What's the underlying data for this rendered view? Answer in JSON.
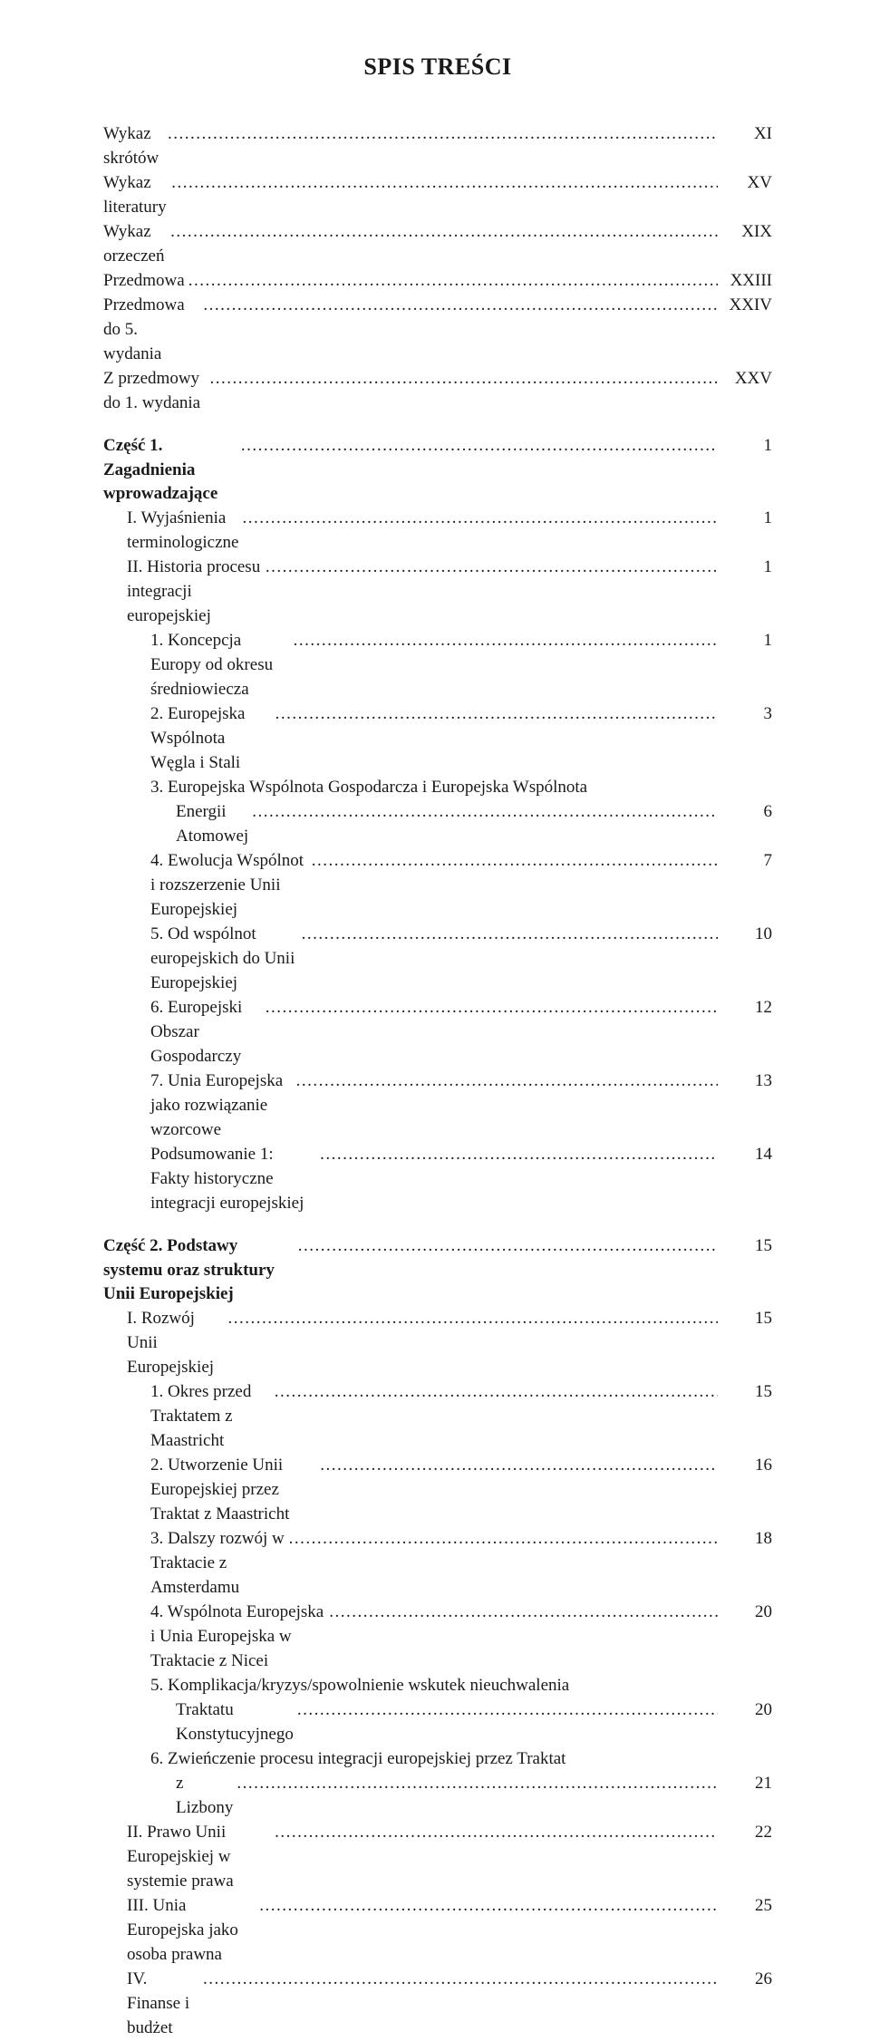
{
  "doc": {
    "title": "SPIS TREŚCI",
    "font_family": "Times New Roman",
    "text_color": "#1a1a1a",
    "background_color": "#ffffff",
    "title_fontsize": 26,
    "body_fontsize": 19
  },
  "lines": [
    {
      "indent": "indent-0",
      "label": "Wykaz skrótów",
      "page": "XI"
    },
    {
      "indent": "indent-0",
      "label": "Wykaz literatury",
      "page": "XV"
    },
    {
      "indent": "indent-0",
      "label": "Wykaz orzeczeń",
      "page": "XIX"
    },
    {
      "indent": "indent-0",
      "label": "Przedmowa",
      "page": "XXIII"
    },
    {
      "indent": "indent-0",
      "label": "Przedmowa do 5. wydania",
      "page": "XXIV"
    },
    {
      "indent": "indent-0",
      "label": "Z przedmowy do 1. wydania",
      "page": "XXV"
    },
    {
      "gap": true
    },
    {
      "indent": "indent-0",
      "bold": true,
      "label": "Część 1. Zagadnienia wprowadzające",
      "page": "1"
    },
    {
      "indent": "indent-1",
      "label": "I. Wyjaśnienia terminologiczne",
      "page": "1"
    },
    {
      "indent": "indent-1",
      "label": "II. Historia procesu integracji europejskiej",
      "page": "1"
    },
    {
      "indent": "indent-2",
      "label": "1. Koncepcja Europy od okresu średniowiecza",
      "page": "1"
    },
    {
      "indent": "indent-2",
      "label": "2. Europejska Wspólnota Węgla i Stali",
      "page": "3"
    },
    {
      "indent": "indent-2",
      "label": "3. Europejska Wspólnota Gospodarcza i Europejska Wspólnota",
      "cont": true
    },
    {
      "indent": "cont-2",
      "label": "Energii Atomowej",
      "page": "6"
    },
    {
      "indent": "indent-2",
      "label": "4. Ewolucja Wspólnot i rozszerzenie Unii Europejskiej",
      "page": "7"
    },
    {
      "indent": "indent-2",
      "label": "5. Od wspólnot europejskich do Unii Europejskiej",
      "page": "10"
    },
    {
      "indent": "indent-2",
      "label": "6. Europejski Obszar Gospodarczy",
      "page": "12"
    },
    {
      "indent": "indent-2",
      "label": "7. Unia Europejska jako rozwiązanie wzorcowe",
      "page": "13"
    },
    {
      "indent": "indent-2",
      "label": "Podsumowanie 1: Fakty historyczne integracji europejskiej",
      "page": "14"
    },
    {
      "gap": true
    },
    {
      "indent": "indent-0",
      "bold": true,
      "label": "Część 2. Podstawy systemu oraz struktury Unii Europejskiej",
      "page": "15"
    },
    {
      "indent": "indent-1",
      "label": "I. Rozwój Unii Europejskiej",
      "page": "15"
    },
    {
      "indent": "indent-2",
      "label": "1. Okres przed Traktatem z Maastricht",
      "page": "15"
    },
    {
      "indent": "indent-2",
      "label": "2. Utworzenie Unii Europejskiej przez Traktat z Maastricht",
      "page": "16"
    },
    {
      "indent": "indent-2",
      "label": "3. Dalszy rozwój w Traktacie z Amsterdamu",
      "page": "18"
    },
    {
      "indent": "indent-2",
      "label": "4. Wspólnota Europejska i Unia Europejska w Traktacie z Nicei",
      "page": "20"
    },
    {
      "indent": "indent-2",
      "label": "5. Komplikacja/kryzys/spowolnienie wskutek nieuchwalenia",
      "cont": true
    },
    {
      "indent": "cont-2",
      "label": "Traktatu Konstytucyjnego",
      "page": "20"
    },
    {
      "indent": "indent-2",
      "label": "6. Zwieńczenie procesu integracji europejskiej przez Traktat",
      "cont": true
    },
    {
      "indent": "cont-2",
      "label": "z Lizbony",
      "page": "21"
    },
    {
      "indent": "indent-1",
      "label": "II. Prawo Unii Europejskiej w systemie prawa",
      "page": "22"
    },
    {
      "indent": "indent-1",
      "label": "III. Unia Europejska jako osoba prawna",
      "page": "25"
    },
    {
      "indent": "indent-1",
      "label": "IV. Finanse i budżet",
      "page": "26"
    }
  ]
}
